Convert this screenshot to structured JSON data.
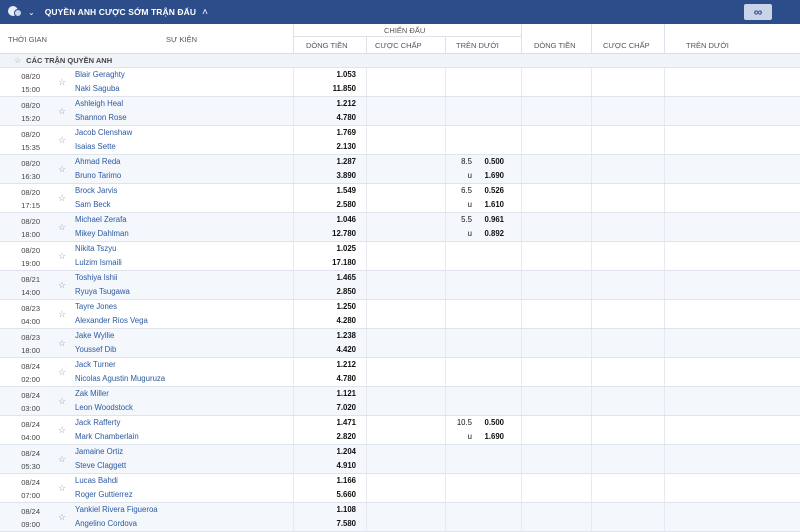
{
  "header": {
    "title": "QUYỀN ANH CƯỢC SỚM TRẬN ĐẤU",
    "infinity_label": "∞"
  },
  "columns": {
    "time": "THỜI GIAN",
    "event": "SỰ KIỆN",
    "group_fulltime": "CHIẾN ĐẤU",
    "moneyline": "DÒNG TIỀN",
    "handicap": "CƯỢC CHẤP",
    "over_under": "TRÊN DƯỚI",
    "moneyline_2": "DÒNG TIỀN",
    "handicap_2": "CƯỢC CHẤP",
    "over_under_2": "TRÊN DƯỚI"
  },
  "section": {
    "label": "CÁC TRẬN QUYỀN ANH"
  },
  "matches": [
    {
      "date": "08/20",
      "time": "15:00",
      "home": "Blair Geraghty",
      "away": "Naki Saguba",
      "ml_home": "1.053",
      "ml_away": "11.850",
      "ou_line": "",
      "ou_over": "",
      "ou_under_label": "",
      "ou_under": ""
    },
    {
      "date": "08/20",
      "time": "15:20",
      "home": "Ashleigh Heal",
      "away": "Shannon Rose",
      "ml_home": "1.212",
      "ml_away": "4.780",
      "ou_line": "",
      "ou_over": "",
      "ou_under_label": "",
      "ou_under": ""
    },
    {
      "date": "08/20",
      "time": "15:35",
      "home": "Jacob Clenshaw",
      "away": "Isaias Sette",
      "ml_home": "1.769",
      "ml_away": "2.130",
      "ou_line": "",
      "ou_over": "",
      "ou_under_label": "",
      "ou_under": ""
    },
    {
      "date": "08/20",
      "time": "16:30",
      "home": "Ahmad Reda",
      "away": "Bruno Tarimo",
      "ml_home": "1.287",
      "ml_away": "3.890",
      "ou_line": "8.5",
      "ou_over": "0.500",
      "ou_under_label": "u",
      "ou_under": "1.690"
    },
    {
      "date": "08/20",
      "time": "17:15",
      "home": "Brock Jarvis",
      "away": "Sam Beck",
      "ml_home": "1.549",
      "ml_away": "2.580",
      "ou_line": "6.5",
      "ou_over": "0.526",
      "ou_under_label": "u",
      "ou_under": "1.610"
    },
    {
      "date": "08/20",
      "time": "18:00",
      "home": "Michael Zerafa",
      "away": "Mikey Dahlman",
      "ml_home": "1.046",
      "ml_away": "12.780",
      "ou_line": "5.5",
      "ou_over": "0.961",
      "ou_under_label": "u",
      "ou_under": "0.892"
    },
    {
      "date": "08/20",
      "time": "19:00",
      "home": "Nikita Tszyu",
      "away": "Lulzim Ismaili",
      "ml_home": "1.025",
      "ml_away": "17.180",
      "ou_line": "",
      "ou_over": "",
      "ou_under_label": "",
      "ou_under": ""
    },
    {
      "date": "08/21",
      "time": "14:00",
      "home": "Toshiya Ishii",
      "away": "Ryuya Tsugawa",
      "ml_home": "1.465",
      "ml_away": "2.850",
      "ou_line": "",
      "ou_over": "",
      "ou_under_label": "",
      "ou_under": ""
    },
    {
      "date": "08/23",
      "time": "04:00",
      "home": "Tayre Jones",
      "away": "Alexander Rios Vega",
      "ml_home": "1.250",
      "ml_away": "4.280",
      "ou_line": "",
      "ou_over": "",
      "ou_under_label": "",
      "ou_under": ""
    },
    {
      "date": "08/23",
      "time": "18:00",
      "home": "Jake Wyllie",
      "away": "Youssef Dib",
      "ml_home": "1.238",
      "ml_away": "4.420",
      "ou_line": "",
      "ou_over": "",
      "ou_under_label": "",
      "ou_under": ""
    },
    {
      "date": "08/24",
      "time": "02:00",
      "home": "Jack Turner",
      "away": "Nicolas Agustin Muguruza",
      "ml_home": "1.212",
      "ml_away": "4.780",
      "ou_line": "",
      "ou_over": "",
      "ou_under_label": "",
      "ou_under": ""
    },
    {
      "date": "08/24",
      "time": "03:00",
      "home": "Zak Miller",
      "away": "Leon Woodstock",
      "ml_home": "1.121",
      "ml_away": "7.020",
      "ou_line": "",
      "ou_over": "",
      "ou_under_label": "",
      "ou_under": ""
    },
    {
      "date": "08/24",
      "time": "04:00",
      "home": "Jack Rafferty",
      "away": "Mark Chamberlain",
      "ml_home": "1.471",
      "ml_away": "2.820",
      "ou_line": "10.5",
      "ou_over": "0.500",
      "ou_under_label": "u",
      "ou_under": "1.690"
    },
    {
      "date": "08/24",
      "time": "05:30",
      "home": "Jamaine Ortiz",
      "away": "Steve Claggett",
      "ml_home": "1.204",
      "ml_away": "4.910",
      "ou_line": "",
      "ou_over": "",
      "ou_under_label": "",
      "ou_under": ""
    },
    {
      "date": "08/24",
      "time": "07:00",
      "home": "Lucas Bahdi",
      "away": "Roger Guttierrez",
      "ml_home": "1.166",
      "ml_away": "5.660",
      "ou_line": "",
      "ou_over": "",
      "ou_under_label": "",
      "ou_under": ""
    },
    {
      "date": "08/24",
      "time": "09:00",
      "home": "Yankiel Rivera Figueroa",
      "away": "Angelino Cordova",
      "ml_home": "1.108",
      "ml_away": "7.580",
      "ou_line": "",
      "ou_over": "",
      "ou_under_label": "",
      "ou_under": ""
    }
  ]
}
